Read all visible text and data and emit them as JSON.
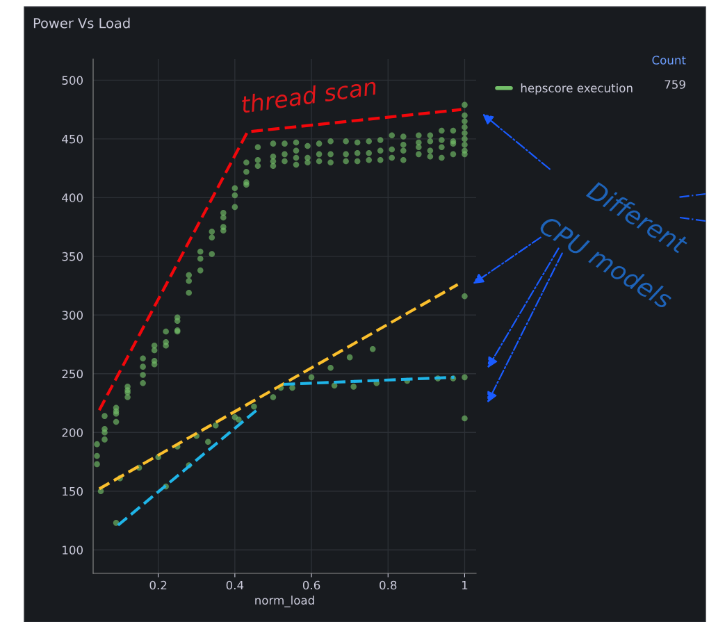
{
  "chart_data": {
    "type": "scatter",
    "title": "Power Vs Load",
    "xlabel": "norm_load",
    "xlim": [
      0.03,
      1.03
    ],
    "xticks": [
      0.2,
      0.4,
      0.6,
      0.8,
      1
    ],
    "ylim": [
      80,
      518
    ],
    "yticks": [
      100,
      150,
      200,
      250,
      300,
      350,
      400,
      450,
      500
    ],
    "grid": true,
    "legend": "top right",
    "marker": "circle",
    "series": [
      {
        "name": "hepscore execution",
        "color": "#73bf69",
        "x": [
          0.04,
          0.04,
          0.04,
          0.06,
          0.06,
          0.06,
          0.06,
          0.09,
          0.09,
          0.09,
          0.09,
          0.12,
          0.12,
          0.12,
          0.12,
          0.16,
          0.16,
          0.16,
          0.16,
          0.19,
          0.19,
          0.19,
          0.19,
          0.22,
          0.22,
          0.22,
          0.25,
          0.25,
          0.25,
          0.25,
          0.28,
          0.28,
          0.28,
          0.31,
          0.31,
          0.31,
          0.34,
          0.34,
          0.34,
          0.37,
          0.37,
          0.37,
          0.37,
          0.4,
          0.4,
          0.4,
          0.43,
          0.43,
          0.43,
          0.43,
          0.46,
          0.46,
          0.46,
          0.5,
          0.5,
          0.5,
          0.5,
          0.53,
          0.53,
          0.53,
          0.56,
          0.56,
          0.56,
          0.56,
          0.59,
          0.59,
          0.59,
          0.62,
          0.62,
          0.62,
          0.65,
          0.65,
          0.65,
          0.69,
          0.69,
          0.69,
          0.72,
          0.72,
          0.72,
          0.75,
          0.75,
          0.75,
          0.78,
          0.78,
          0.78,
          0.81,
          0.81,
          0.81,
          0.84,
          0.84,
          0.84,
          0.84,
          0.88,
          0.88,
          0.88,
          0.88,
          0.91,
          0.91,
          0.91,
          0.91,
          0.94,
          0.94,
          0.94,
          0.94,
          0.97,
          0.97,
          0.97,
          0.97,
          1,
          1,
          1,
          1,
          1,
          1,
          1,
          1,
          1,
          1,
          1,
          1,
          0.05,
          0.09,
          0.1,
          0.15,
          0.2,
          0.22,
          0.25,
          0.28,
          0.3,
          0.33,
          0.35,
          0.4,
          0.41,
          0.45,
          0.5,
          0.52,
          0.55,
          0.6,
          0.65,
          0.66,
          0.7,
          0.71,
          0.76,
          0.77,
          0.85,
          0.93,
          0.97
        ],
        "values": [
          190,
          180,
          173,
          214,
          203,
          200,
          194,
          221,
          218,
          216,
          209,
          239,
          236,
          234,
          230,
          263,
          256,
          249,
          242,
          274,
          270,
          261,
          258,
          286,
          277,
          274,
          298,
          295,
          287,
          286,
          334,
          329,
          319,
          354,
          348,
          338,
          371,
          366,
          352,
          387,
          383,
          375,
          372,
          408,
          402,
          392,
          430,
          422,
          413,
          411,
          443,
          432,
          427,
          446,
          435,
          431,
          427,
          446,
          437,
          431,
          447,
          440,
          434,
          428,
          444,
          434,
          430,
          446,
          437,
          431,
          448,
          437,
          430,
          448,
          437,
          431,
          447,
          438,
          431,
          448,
          438,
          432,
          449,
          440,
          432,
          453,
          441,
          434,
          452,
          445,
          440,
          432,
          453,
          447,
          443,
          437,
          453,
          448,
          440,
          435,
          457,
          449,
          443,
          434,
          457,
          448,
          446,
          437,
          479,
          470,
          465,
          460,
          455,
          450,
          445,
          440,
          437,
          316,
          247,
          212,
          150,
          123,
          161,
          170,
          179,
          154,
          188,
          172,
          197,
          192,
          206,
          213,
          211,
          222,
          230,
          238,
          238,
          247,
          255,
          240,
          264,
          239,
          271,
          242,
          244,
          246,
          246
        ]
      },
      {
        "type": "line",
        "color": "#f2070b",
        "line_style": "dashed",
        "marker": "none",
        "x": [
          0.046,
          0.433,
          0.991
        ],
        "values": [
          219,
          456,
          475
        ]
      },
      {
        "type": "line",
        "color": "#fbc02d",
        "line_style": "dashed",
        "marker": "none",
        "x": [
          0.046,
          0.982
        ],
        "values": [
          152,
          326
        ]
      },
      {
        "type": "line",
        "color": "#1fb5e8",
        "line_style": "dashed",
        "marker": "none",
        "x": [
          0.095,
          0.457
        ],
        "values": [
          121,
          219
        ]
      },
      {
        "type": "line",
        "color": "#1fb5e8",
        "line_style": "dashed",
        "marker": "none",
        "x": [
          0.527,
          0.973
        ],
        "values": [
          241,
          247
        ]
      }
    ],
    "annotations": [
      "Count",
      "759",
      "thread scan",
      "Different",
      "CPU models"
    ]
  }
}
